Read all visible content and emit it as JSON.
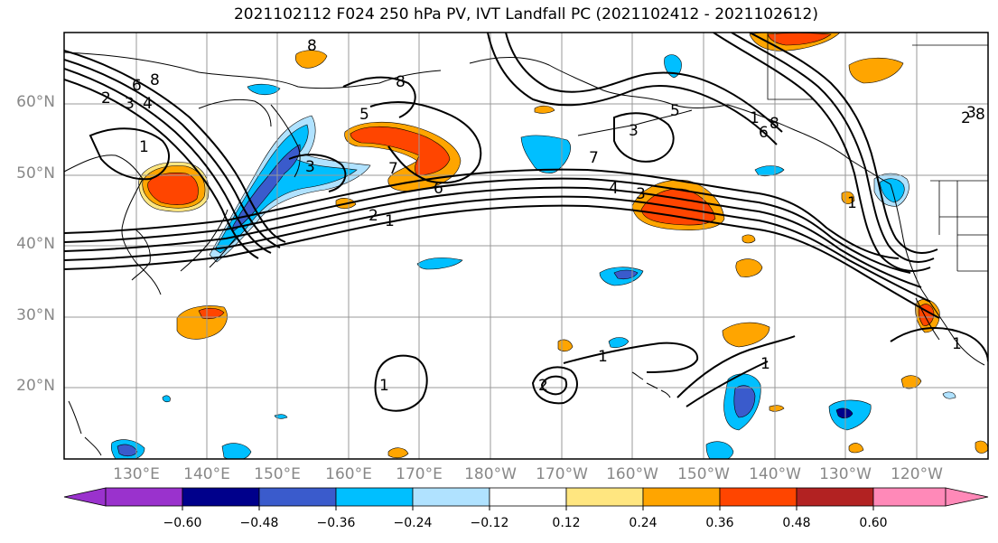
{
  "title": "2021102112 F024 250 hPa PV, IVT Landfall PC (2021102412 - 2021102612)",
  "lat_labels": [
    "60°N",
    "50°N",
    "40°N",
    "30°N",
    "20°N"
  ],
  "lon_labels": [
    "130°E",
    "140°E",
    "150°E",
    "160°E",
    "170°E",
    "180°W",
    "170°W",
    "160°W",
    "150°W",
    "140°W",
    "130°W",
    "120°W"
  ],
  "colorbar": {
    "ticks": [
      "−0.60",
      "−0.48",
      "−0.36",
      "−0.24",
      "−0.12",
      "0.12",
      "0.24",
      "0.36",
      "0.48",
      "0.60"
    ],
    "colors": [
      "#9a32cd",
      "#00008b",
      "#3a5bcc",
      "#00bfff",
      "#b0e2ff",
      "#ffffff",
      "#ffe680",
      "#ffa500",
      "#ff4500",
      "#b22222",
      "#ff89b8"
    ]
  },
  "contour_labels": [
    "8",
    "6",
    "8",
    "2",
    "3",
    "4",
    "1",
    "5",
    "8",
    "3",
    "7",
    "6",
    "4",
    "3",
    "7",
    "2",
    "1",
    "5",
    "3",
    "8",
    "1",
    "6",
    "1",
    "2",
    "1",
    "1",
    "1",
    "1",
    "2",
    "8",
    "3"
  ],
  "colors": {
    "frame": "#000000",
    "grid": "#999999",
    "coast": "#000000",
    "contour": "#000000"
  }
}
